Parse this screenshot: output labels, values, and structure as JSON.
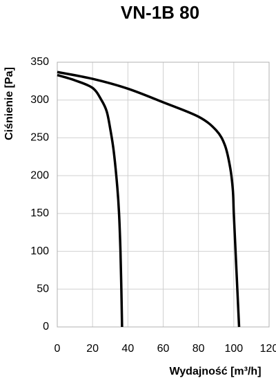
{
  "chart_data": {
    "type": "line",
    "title": "VN-1B 80",
    "x_label": "Wydajność [m³/h]",
    "y_label": "Ciśnienie [Pa]",
    "xlim": [
      0,
      120
    ],
    "xticks": [
      0,
      20,
      40,
      60,
      80,
      100,
      120
    ],
    "ylim": [
      0,
      350
    ],
    "yticks": [
      0,
      50,
      100,
      150,
      200,
      250,
      300,
      350
    ],
    "grid": true,
    "series": [
      {
        "color": "#000000",
        "x": [
          0,
          10,
          20,
          25,
          28,
          30,
          32,
          34,
          35,
          35.8,
          36.3,
          36.7
        ],
        "values": [
          333,
          326,
          316,
          300,
          285,
          262,
          232,
          185,
          150,
          100,
          50,
          0
        ]
      },
      {
        "color": "#000000",
        "x": [
          0,
          20,
          40,
          60,
          80,
          90,
          95,
          98,
          99.5,
          100,
          101,
          102,
          103
        ],
        "values": [
          337,
          328,
          315,
          297,
          278,
          260,
          240,
          210,
          180,
          150,
          100,
          50,
          0
        ]
      }
    ]
  }
}
